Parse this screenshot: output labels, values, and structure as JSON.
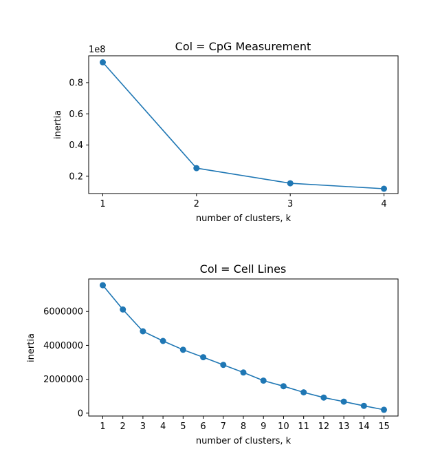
{
  "chart_data": [
    {
      "type": "line",
      "title": "Col = CpG Measurement",
      "xlabel": "number of clusters, k",
      "ylabel": "inertia",
      "offset_label": "1e8",
      "x": [
        1,
        2,
        3,
        4
      ],
      "series": [
        {
          "values": [
            93000000,
            25200000,
            15500000,
            12000000
          ]
        }
      ],
      "xticks": [
        1,
        2,
        3,
        4
      ],
      "xtick_labels": [
        "1",
        "2",
        "3",
        "4"
      ],
      "yticks": [
        20000000,
        40000000,
        60000000,
        80000000
      ],
      "ytick_labels": [
        "0.2",
        "0.4",
        "0.6",
        "0.8"
      ],
      "xlim": [
        0.85,
        4.15
      ],
      "ylim": [
        8900000,
        97200000
      ],
      "color": "#1f77b4",
      "grid": false
    },
    {
      "type": "line",
      "title": "Col = Cell Lines",
      "xlabel": "number of clusters, k",
      "ylabel": "inertia",
      "x": [
        1,
        2,
        3,
        4,
        5,
        6,
        7,
        8,
        9,
        10,
        11,
        12,
        13,
        14,
        15
      ],
      "series": [
        {
          "values": [
            7550000,
            6120000,
            4830000,
            4260000,
            3740000,
            3300000,
            2850000,
            2400000,
            1920000,
            1590000,
            1230000,
            920000,
            680000,
            430000,
            200000
          ]
        }
      ],
      "xticks": [
        1,
        2,
        3,
        4,
        5,
        6,
        7,
        8,
        9,
        10,
        11,
        12,
        13,
        14,
        15
      ],
      "xtick_labels": [
        "1",
        "2",
        "3",
        "4",
        "5",
        "6",
        "7",
        "8",
        "9",
        "10",
        "11",
        "12",
        "13",
        "14",
        "15"
      ],
      "yticks": [
        0,
        2000000,
        4000000,
        6000000
      ],
      "ytick_labels": [
        "0",
        "2000000",
        "4000000",
        "6000000"
      ],
      "xlim": [
        0.3,
        15.7
      ],
      "ylim": [
        -170000,
        7920000
      ],
      "color": "#1f77b4",
      "grid": false
    }
  ]
}
